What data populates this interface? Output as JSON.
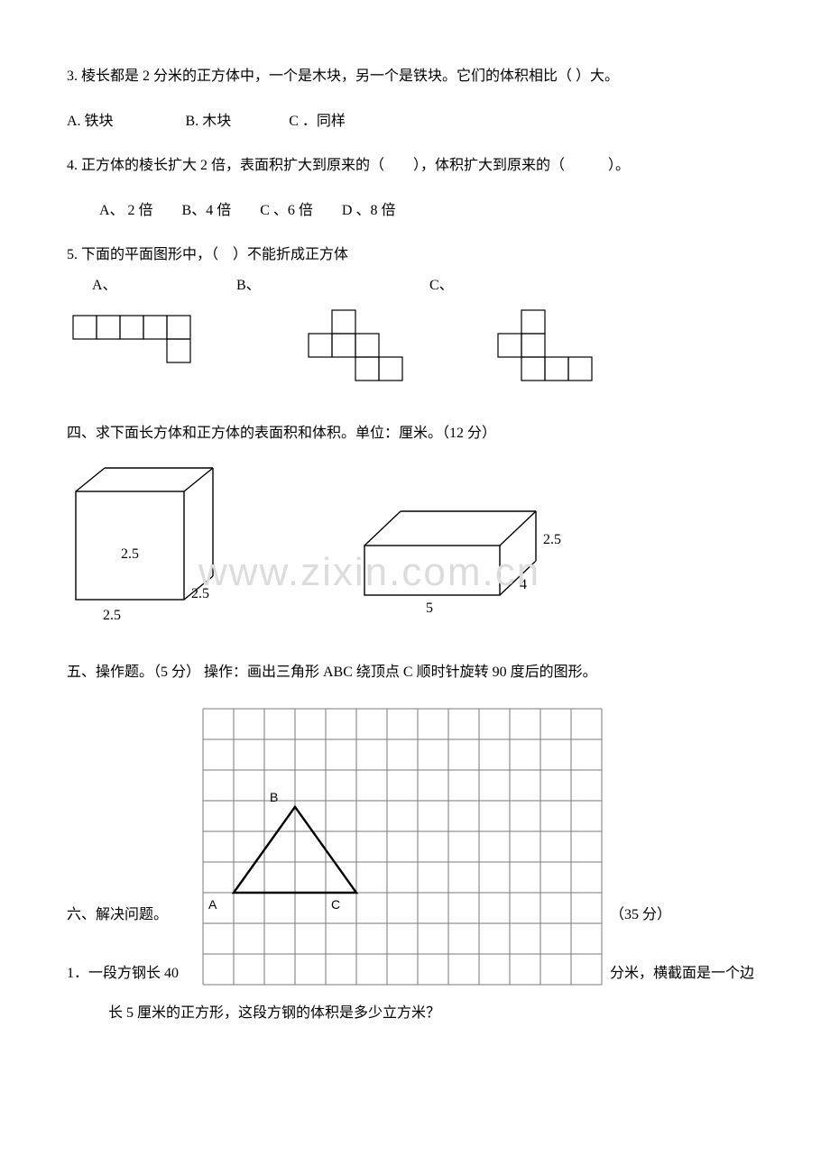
{
  "q3": {
    "text": "3. 棱长都是 2 分米的正方体中，一个是木块，另一个是铁块。它们的体积相比（  ）大。",
    "opts": "A. 铁块　　　　　B. 木块　　　　C ．同样"
  },
  "q4": {
    "text": "4. 正方体的棱长扩大 2 倍，表面积扩大到原来的（　　），体积扩大到原来的（　　　）。",
    "opts": "A、 2 倍　　B、4 倍　　C 、6 倍　　D 、8 倍"
  },
  "q5": {
    "text": "5. 下面的平面图形中，（　）不能折成正方体",
    "labels": {
      "a": "A、",
      "b": "B、",
      "c": "C、"
    }
  },
  "sec4": {
    "title": "四、求下面长方体和正方体的表面积和体积。单位：厘米。（12 分）",
    "cube": {
      "a": "2.5",
      "b": "2.5",
      "c": "2.5"
    },
    "cuboid": {
      "l": "5",
      "w": "4",
      "h": "2.5"
    }
  },
  "sec5": {
    "title": "五、操作题。（5 分） 操作：画出三角形 ABC 绕顶点 C 顺时针旋转 90 度后的图形。",
    "grid": {
      "cols": 13,
      "rows": 9,
      "cell": 34,
      "A": "A",
      "B": "B",
      "C": "C"
    }
  },
  "sec6": {
    "left": "六、解决问题。",
    "right": "（35 分）"
  },
  "q6_1": {
    "line1a": "1．一段方钢长 40",
    "line1b": "分米，横截面是一个边",
    "line2": "长 5 厘米的正方形，这段方钢的体积是多少立方米？"
  },
  "watermark": "www.zixin.com.cn",
  "colors": {
    "stroke": "#000000",
    "grid": "#7a7a7a",
    "watermark": "#dcdcdc",
    "bg": "#ffffff"
  }
}
